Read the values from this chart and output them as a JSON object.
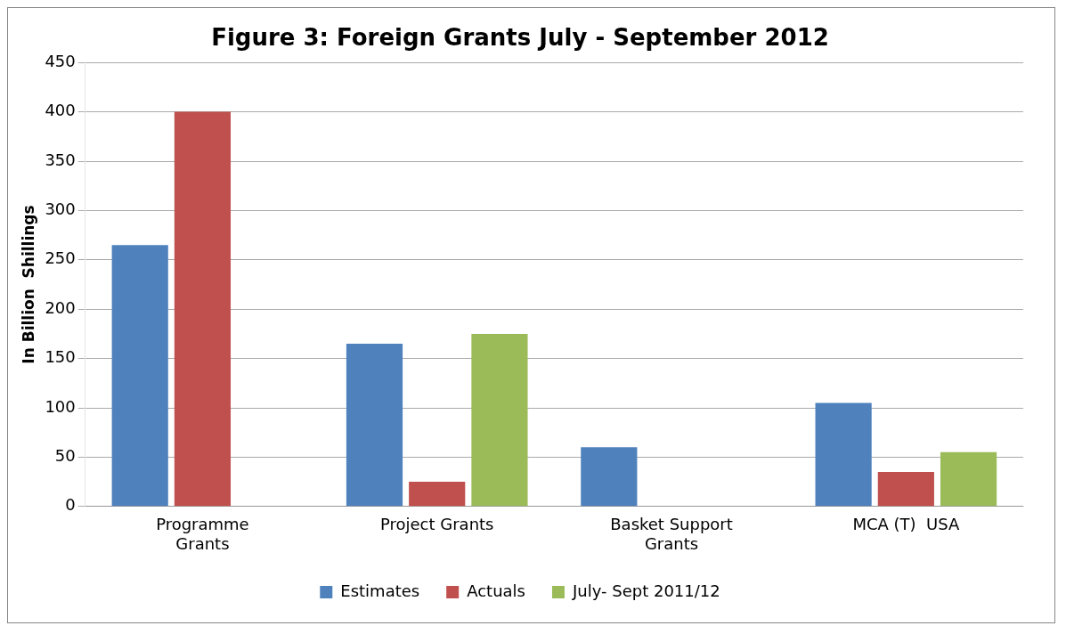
{
  "chart_data": {
    "type": "bar",
    "title": "Figure 3: Foreign Grants July - September 2012",
    "ylabel": "In Billion  Shillings",
    "categories": [
      "Programme Grants",
      "Project Grants",
      "Basket Support Grants",
      "MCA (T)  USA"
    ],
    "series": [
      {
        "name": "Estimates",
        "color": "#4f81bd",
        "values": [
          265,
          165,
          60,
          105
        ]
      },
      {
        "name": "Actuals",
        "color": "#c0504d",
        "values": [
          400,
          25,
          0,
          35
        ]
      },
      {
        "name": "July- Sept 2011/12",
        "color": "#9bbb59",
        "values": [
          0,
          175,
          0,
          55
        ]
      }
    ],
    "ylim": [
      0,
      450
    ],
    "yticks": [
      0,
      50,
      100,
      150,
      200,
      250,
      300,
      350,
      400,
      450
    ],
    "grid": "y",
    "legend": "bottom"
  }
}
